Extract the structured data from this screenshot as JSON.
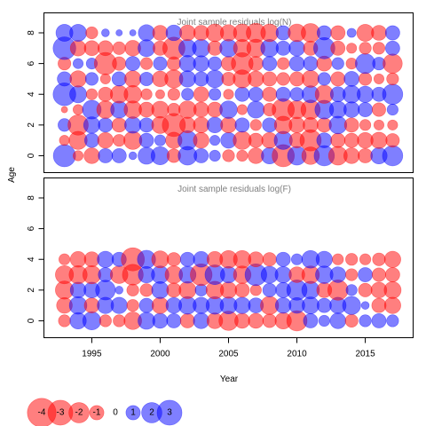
{
  "chart_data": {
    "type": "scatter",
    "encoding": "bubble",
    "xlabel": "Year",
    "ylabel": "Age",
    "x_ticks": [
      "1995",
      "2000",
      "2005",
      "2010",
      "2015"
    ],
    "y_ticks": [
      "0",
      "2",
      "4",
      "6",
      "8"
    ],
    "x_range": [
      1991.5,
      2018.5
    ],
    "y_range": [
      -1.1,
      9.3
    ],
    "colors": {
      "positive": "#0000ff",
      "negative": "#ff0000",
      "alpha": 0.5
    },
    "years": [
      1993,
      1994,
      1995,
      1996,
      1997,
      1998,
      1999,
      2000,
      2001,
      2002,
      2003,
      2004,
      2005,
      2006,
      2007,
      2008,
      2009,
      2010,
      2011,
      2012,
      2013,
      2014,
      2015,
      2016,
      2017
    ],
    "panels": [
      {
        "title": "Joint sample residuals log(N)",
        "ages": [
          0,
          1,
          2,
          3,
          4,
          5,
          6,
          7,
          8
        ],
        "residuals": [
          [
            2.4,
            -0.5,
            -1.2,
            1.0,
            1.0,
            0.3,
            1.4,
            1.6,
            -0.9,
            1.7,
            1.0,
            0.6,
            -0.7,
            -0.6,
            -1.2,
            1.3,
            -2.4,
            1.7,
            -1.5,
            2.0,
            -1.7,
            -1.2,
            -1.0,
            1.3,
            2.0
          ],
          [
            -0.5,
            -1.6,
            1.0,
            -1.2,
            -0.7,
            -1.6,
            1.0,
            0.6,
            -1.3,
            1.8,
            -1.2,
            0.5,
            1.2,
            -1.6,
            -1.0,
            -1.2,
            1.6,
            -1.1,
            -2.2,
            1.1,
            -1.0,
            -1.0,
            -1.2,
            -1.3,
            -0.9
          ],
          [
            0.8,
            -2.0,
            1.3,
            1.0,
            -1.0,
            1.3,
            1.0,
            -1.4,
            -2.6,
            -1.2,
            -1.2,
            1.2,
            -1.2,
            1.0,
            -0.6,
            1.0,
            -1.5,
            -1.2,
            -1.1,
            -1.0,
            1.5,
            -1.0,
            -0.6,
            -0.5,
            -0.5
          ],
          [
            -0.2,
            -0.5,
            1.7,
            -1.5,
            1.4,
            -1.5,
            -1.1,
            -1.4,
            -0.8,
            -1.5,
            -1.1,
            -1.1,
            1.5,
            -0.5,
            1.4,
            -0.8,
            -2.4,
            -1.6,
            -1.8,
            1.7,
            1.4,
            1.2,
            1.0,
            -0.9,
            0.6
          ],
          [
            2.5,
            1.4,
            -0.6,
            -1.0,
            -1.5,
            -1.5,
            -0.6,
            -0.4,
            -0.7,
            0.7,
            -1.1,
            0.7,
            -0.5,
            1.0,
            1.0,
            -1.0,
            1.0,
            0.9,
            1.4,
            -1.6,
            1.1,
            1.5,
            1.3,
            1.0,
            2.0
          ],
          [
            1.0,
            -1.3,
            0.8,
            -0.5,
            1.0,
            -1.3,
            0.9,
            -1.2,
            -1.6,
            1.3,
            1.0,
            1.5,
            -0.9,
            -1.6,
            -1.2,
            -1.0,
            -0.8,
            -1.0,
            -1.4,
            0.8,
            -1.0,
            1.1,
            -0.8,
            -0.5,
            -0.7
          ],
          [
            -0.8,
            0.5,
            0.6,
            -2.4,
            -0.9,
            1.0,
            -0.7,
            0.9,
            -0.9,
            1.3,
            1.2,
            0.9,
            -1.0,
            -2.3,
            -1.0,
            1.0,
            -0.7,
            1.1,
            1.0,
            -1.1,
            0.7,
            -0.6,
            1.9,
            0.8,
            -1.8
          ],
          [
            2.5,
            -1.2,
            -1.1,
            -1.1,
            -0.8,
            -1.2,
            1.4,
            -1.0,
            -2.4,
            1.5,
            1.5,
            -1.0,
            1.5,
            -1.5,
            -1.6,
            1.5,
            1.0,
            1.2,
            -1.0,
            2.2,
            -1.0,
            -0.5,
            -0.7,
            -0.7,
            1.0
          ],
          [
            1.4,
            1.4,
            -0.7,
            0.3,
            0.2,
            0.2,
            1.3,
            -1.1,
            1.2,
            -1.2,
            -1.1,
            -1.5,
            -1.3,
            -1.5,
            -1.8,
            -1.5,
            1.0,
            -1.5,
            -1.7,
            1.0,
            -1.0,
            0.4,
            -1.4,
            -1.1,
            1.0
          ]
        ]
      },
      {
        "title": "Joint sample residuals log(F)",
        "ages": [
          0,
          1,
          2,
          3,
          4
        ],
        "residuals": [
          [
            -0.7,
            1.3,
            1.6,
            -0.7,
            -0.7,
            -1.5,
            1.4,
            1.1,
            1.0,
            -1.0,
            1.2,
            -1.2,
            -1.8,
            -1.1,
            -1.1,
            -0.9,
            -1.3,
            -2.0,
            1.0,
            0.6,
            1.2,
            -0.8,
            0.7,
            1.0,
            0.7
          ],
          [
            -1.2,
            1.5,
            -1.1,
            1.3,
            1.3,
            -0.7,
            1.0,
            -1.3,
            1.2,
            1.5,
            1.3,
            1.5,
            1.4,
            1.3,
            1.1,
            -1.6,
            1.2,
            1.2,
            1.4,
            1.0,
            1.3,
            1.6,
            0.3,
            -1.0,
            -1.3
          ],
          [
            -1.6,
            1.2,
            1.2,
            1.9,
            0.3,
            -0.7,
            -0.8,
            1.4,
            -1.0,
            -1.4,
            0.7,
            -1.5,
            -1.3,
            -1.0,
            -0.6,
            0.9,
            1.1,
            2.0,
            1.5,
            -1.1,
            -2.0,
            0.6,
            -0.9,
            -1.2,
            -1.4
          ],
          [
            -1.6,
            -1.6,
            -1.6,
            1.0,
            -1.5,
            -2.1,
            1.3,
            1.5,
            -1.5,
            1.4,
            -2.3,
            1.9,
            1.3,
            -1.5,
            2.3,
            1.4,
            1.3,
            -1.2,
            -1.5,
            1.5,
            1.2,
            -0.7,
            1.0,
            -0.9,
            -1.0
          ],
          [
            -0.6,
            -1.2,
            -1.1,
            1.3,
            1.0,
            -2.6,
            1.6,
            -1.4,
            -0.9,
            1.0,
            1.2,
            -1.2,
            -1.5,
            -1.5,
            -1.1,
            -0.9,
            1.0,
            0.6,
            1.5,
            1.3,
            -0.6,
            -0.7,
            -0.6,
            -0.8,
            -1.3
          ]
        ]
      }
    ],
    "legend": {
      "placement": "bottom-left",
      "values": [
        -4,
        -3,
        -2,
        -1,
        0,
        1,
        2,
        3
      ],
      "labels": [
        "-4",
        "-3",
        "-2",
        "-1",
        "0",
        "1",
        "2",
        "3"
      ]
    }
  }
}
